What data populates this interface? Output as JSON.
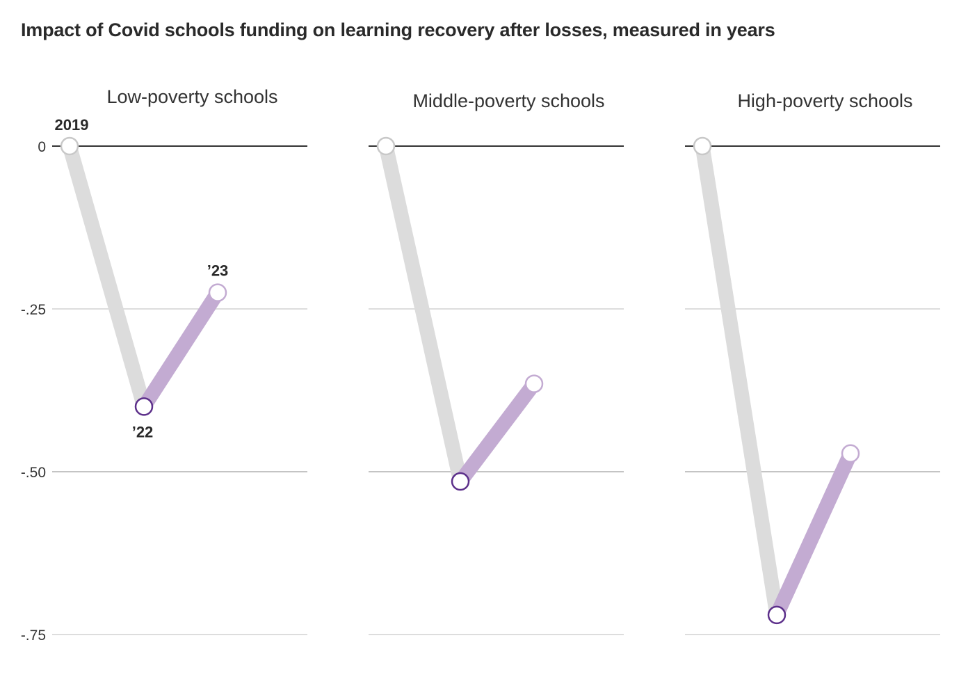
{
  "title": "Impact of Covid schools funding on learning recovery after losses, measured in years",
  "chart_data": {
    "type": "line",
    "title": "Impact of Covid schools funding on learning recovery after losses, measured in years",
    "x": [
      "2019",
      "'22",
      "'23"
    ],
    "x_labels_shown": [
      "2019",
      "’22",
      "’23"
    ],
    "y_ticks": [
      "0",
      "-.25",
      "-.50",
      "-.75"
    ],
    "y_tick_values": [
      0,
      -0.25,
      -0.5,
      -0.75
    ],
    "ylim": [
      -0.75,
      0
    ],
    "grid": true,
    "colors": {
      "decline": "#dcdcdc",
      "recovery": "#c3abd2",
      "point_2022": "#5c2f8a",
      "point_2023": "#c3abd2",
      "point_2019": "#c8c8c8",
      "zero_line": "#333333",
      "grid": "#dddddd",
      "grid_minus50": "#c4c4c4"
    },
    "panels": [
      {
        "name": "Low-poverty schools",
        "values": [
          0,
          -0.4,
          -0.225
        ]
      },
      {
        "name": "Middle-poverty schools",
        "values": [
          0,
          -0.515,
          -0.365
        ]
      },
      {
        "name": "High-poverty schools",
        "values": [
          0,
          -0.72,
          -0.472
        ]
      }
    ]
  }
}
